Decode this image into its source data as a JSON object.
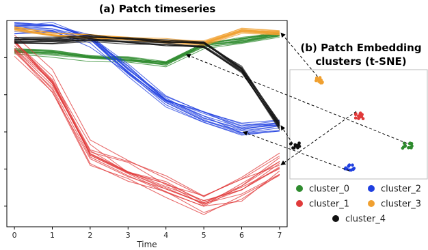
{
  "chart_data": [
    {
      "type": "line",
      "title": "(a) Patch timeseries",
      "xlabel": "Time",
      "ylabel": "",
      "x": [
        0,
        1,
        2,
        3,
        4,
        5,
        6,
        7
      ],
      "xlim": [
        -0.2,
        7.2
      ],
      "ylim": [
        0,
        1
      ],
      "grid": false,
      "series": [
        {
          "cluster": "cluster_0",
          "color": "#2e8b2e",
          "values": [
            0.85,
            0.84,
            0.82,
            0.81,
            0.79,
            0.88,
            0.9,
            0.93
          ]
        },
        {
          "cluster": "cluster_1",
          "color": "#e03a3a",
          "values": [
            0.88,
            0.7,
            0.36,
            0.27,
            0.2,
            0.12,
            0.19,
            0.3
          ]
        },
        {
          "cluster": "cluster_2",
          "color": "#1f3fe0",
          "values": [
            0.96,
            0.96,
            0.9,
            0.75,
            0.6,
            0.52,
            0.46,
            0.48
          ]
        },
        {
          "cluster": "cluster_3",
          "color": "#f0a030",
          "values": [
            0.96,
            0.93,
            0.92,
            0.91,
            0.9,
            0.89,
            0.95,
            0.94
          ]
        },
        {
          "cluster": "cluster_4",
          "color": "#111111",
          "values": [
            0.9,
            0.9,
            0.91,
            0.9,
            0.89,
            0.88,
            0.76,
            0.49
          ]
        }
      ]
    },
    {
      "type": "scatter",
      "title": "(b) Patch Embedding clusters (t-SNE)",
      "series": [
        {
          "name": "cluster_0",
          "color": "#2e8b2e",
          "x": [
            8.5
          ],
          "y": [
            3.0
          ]
        },
        {
          "name": "cluster_1",
          "color": "#e03a3a",
          "x": [
            5.0
          ],
          "y": [
            5.8
          ]
        },
        {
          "name": "cluster_2",
          "color": "#1f3fe0",
          "x": [
            4.3
          ],
          "y": [
            1.0
          ]
        },
        {
          "name": "cluster_3",
          "color": "#f0a030",
          "x": [
            2.2
          ],
          "y": [
            9.0
          ]
        },
        {
          "name": "cluster_4",
          "color": "#111111",
          "x": [
            0.4
          ],
          "y": [
            3.1
          ]
        }
      ],
      "legend": "bottom"
    }
  ]
}
